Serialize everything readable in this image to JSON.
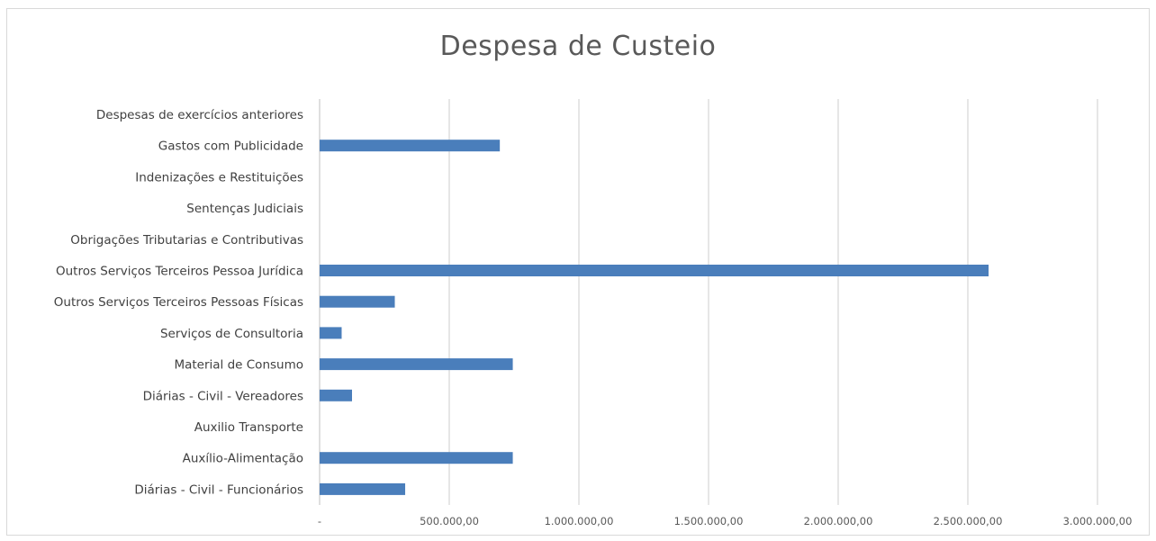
{
  "chart_data": {
    "type": "bar",
    "orientation": "horizontal",
    "title": "Despesa de Custeio",
    "xlabel": "",
    "ylabel": "",
    "grid": true,
    "legend": "none",
    "xlim": [
      0,
      3000000
    ],
    "tick_values": [
      0,
      500000,
      1000000,
      1500000,
      2000000,
      2500000,
      3000000
    ],
    "tick_labels": [
      "-",
      "500.000,00",
      "1.000.000,00",
      "1.500.000,00",
      "2.000.000,00",
      "2.500.000,00",
      "3.000.000,00"
    ],
    "categories": [
      "Despesas de exercícios anteriores",
      "Gastos com Publicidade",
      "Indenizações e Restituições",
      "Sentenças Judiciais",
      "Obrigações Tributarias e Contributivas",
      "Outros Serviços Terceiros Pessoa Jurídica",
      "Outros Serviços Terceiros Pessoas Físicas",
      "Serviços de Consultoria",
      "Material de Consumo",
      "Diárias - Civil - Vereadores",
      "Auxilio Transporte",
      "Auxílio-Alimentação",
      "Diárias - Civil - Funcionários"
    ],
    "values": [
      0,
      695000,
      0,
      0,
      0,
      2580000,
      290000,
      85000,
      745000,
      125000,
      0,
      745000,
      330000
    ],
    "bar_color": "#4a7ebb"
  }
}
